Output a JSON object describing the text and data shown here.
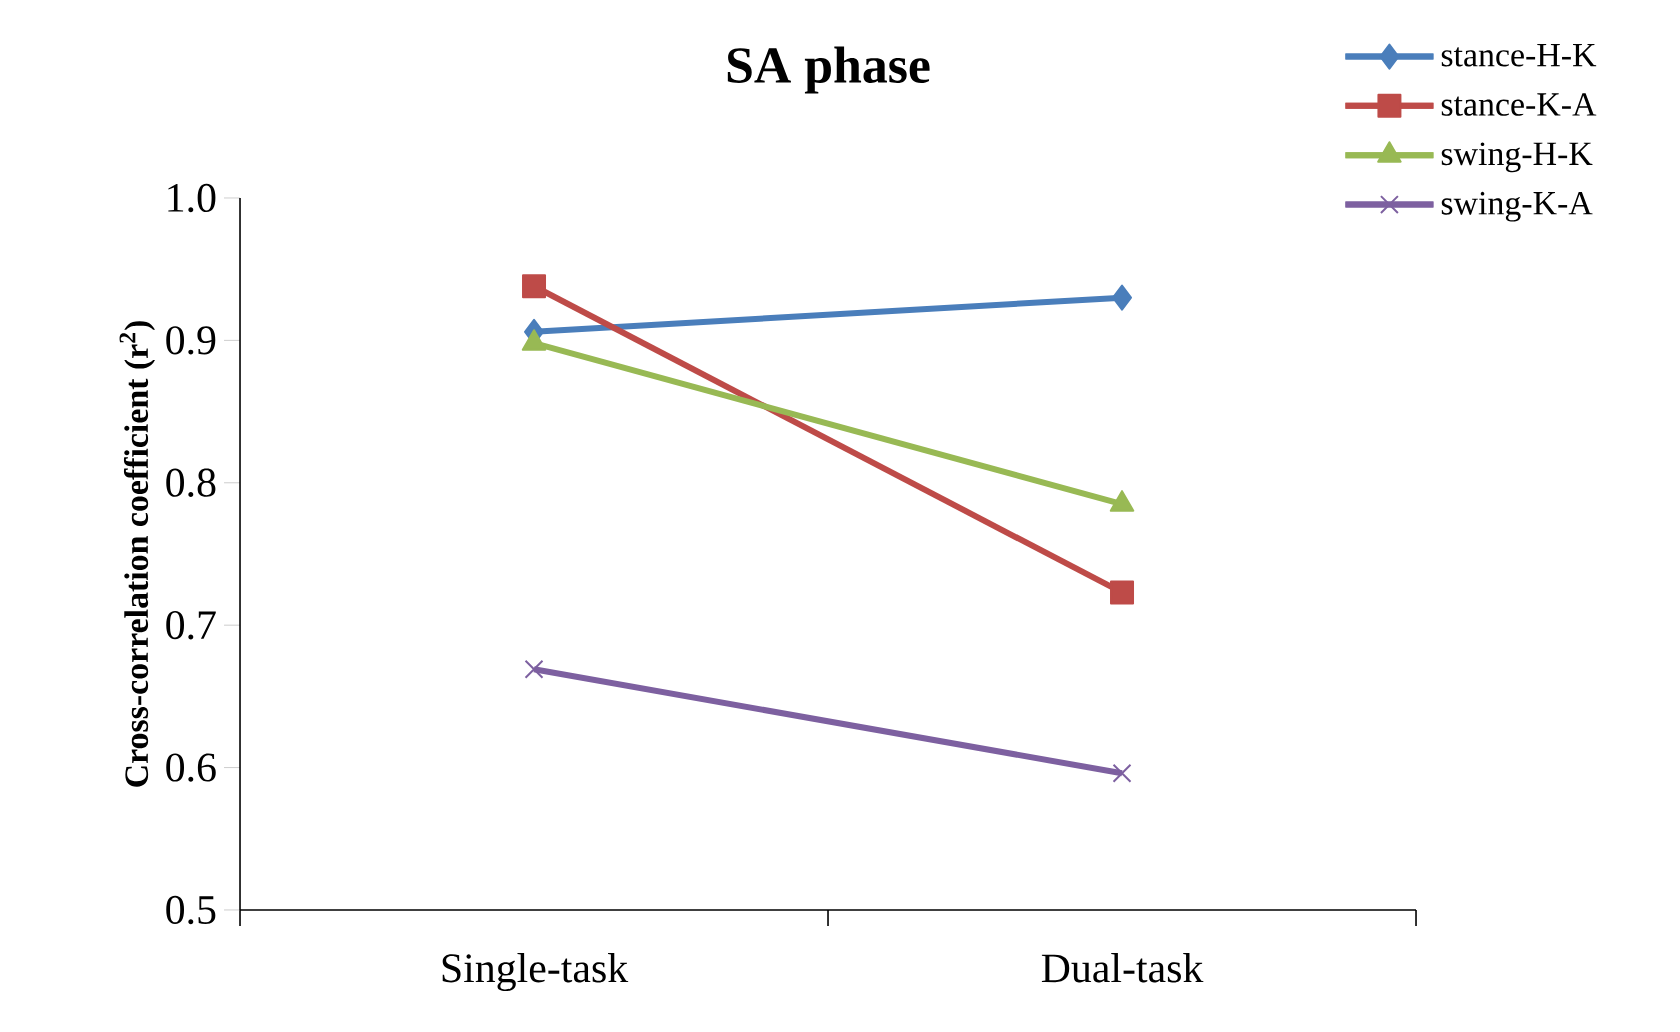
{
  "chart_data": {
    "type": "line",
    "title": "SA phase",
    "ylabel": "Cross-correlation coefficient (r$^{2}$)",
    "categories": [
      "Single-task",
      "Dual-task"
    ],
    "series": [
      {
        "name": "stance-H-K",
        "color": "#4a7ebb",
        "marker": "diamond",
        "values": [
          0.906,
          0.93
        ]
      },
      {
        "name": "stance-K-A",
        "color": "#be4b48",
        "marker": "square",
        "values": [
          0.938,
          0.723
        ]
      },
      {
        "name": "swing-H-K",
        "color": "#98b954",
        "marker": "triangle",
        "values": [
          0.898,
          0.785
        ]
      },
      {
        "name": "swing-K-A",
        "color": "#7d60a0",
        "marker": "cross",
        "values": [
          0.669,
          0.596
        ]
      }
    ],
    "ylim": [
      0.5,
      1.0
    ],
    "yticks": [
      0.5,
      0.6,
      0.7,
      0.8,
      0.9,
      {
        "value": 1.0,
        "label": "1.0"
      }
    ],
    "grid": false,
    "legend": "top right"
  }
}
